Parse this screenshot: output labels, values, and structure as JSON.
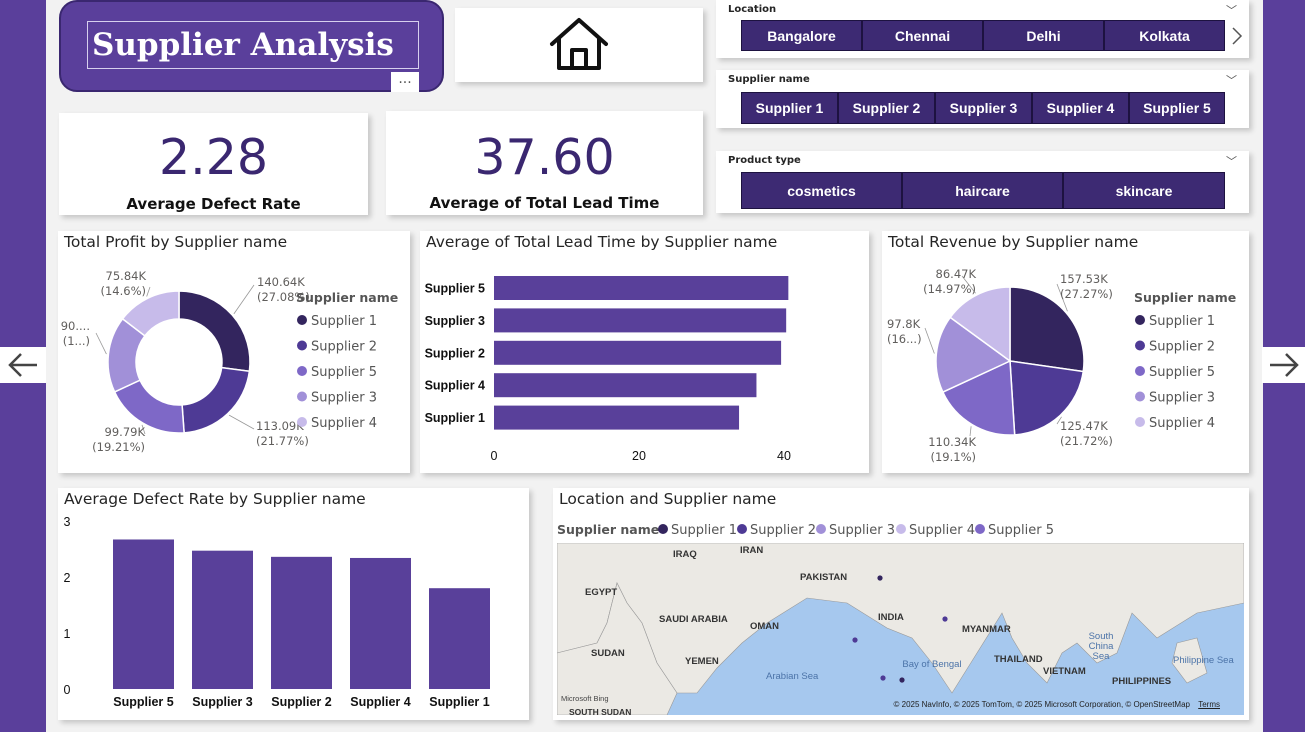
{
  "header": {
    "title": "Supplier Analysis",
    "more_label": "..."
  },
  "home_icon": "home-icon",
  "kpis": {
    "defect_rate": {
      "value": "2.28",
      "label": "Average Defect Rate"
    },
    "lead_time": {
      "value": "37.60",
      "label": "Average of Total Lead Time"
    }
  },
  "slicers": {
    "location": {
      "title": "Location",
      "options": [
        "Bangalore",
        "Chennai",
        "Delhi",
        "Kolkata"
      ]
    },
    "supplier": {
      "title": "Supplier name",
      "options": [
        "Supplier 1",
        "Supplier 2",
        "Supplier 3",
        "Supplier 4",
        "Supplier 5"
      ]
    },
    "product": {
      "title": "Product type",
      "options": [
        "cosmetics",
        "haircare",
        "skincare"
      ]
    }
  },
  "colors": {
    "supplier_1": "#33255e",
    "supplier_2": "#4e3a95",
    "supplier_5": "#7e68c7",
    "supplier_3": "#a190d8",
    "supplier_4": "#c7bbea",
    "bar": "#59409a",
    "background": "#5a3f9b"
  },
  "chart_data": [
    {
      "id": "profit",
      "type": "pie",
      "donut": true,
      "title": "Total Profit by Supplier name",
      "legend_title": "Supplier name",
      "legend": [
        "Supplier 1",
        "Supplier 2",
        "Supplier 5",
        "Supplier 3",
        "Supplier 4"
      ],
      "slices": [
        {
          "name": "Supplier 1",
          "value": 140.64,
          "label": "140.64K",
          "pct": "(27.08%)"
        },
        {
          "name": "Supplier 2",
          "value": 113.09,
          "label": "113.09K",
          "pct": "(21.77%)"
        },
        {
          "name": "Supplier 5",
          "value": 99.79,
          "label": "99.79K",
          "pct": "(19.21%)"
        },
        {
          "name": "Supplier 3",
          "value": 90.0,
          "label": "90....",
          "pct": "(1...)"
        },
        {
          "name": "Supplier 4",
          "value": 75.84,
          "label": "75.84K",
          "pct": "(14.6%)"
        }
      ]
    },
    {
      "id": "leadtime",
      "type": "bar",
      "orientation": "horizontal",
      "title": "Average of Total Lead Time by Supplier name",
      "categories": [
        "Supplier 5",
        "Supplier 3",
        "Supplier 2",
        "Supplier 4",
        "Supplier 1"
      ],
      "values": [
        40.6,
        40.3,
        39.6,
        36.2,
        33.8
      ],
      "xlim": [
        0,
        40
      ],
      "ticks": [
        "0",
        "20",
        "40"
      ],
      "tick_values": [
        0,
        20,
        40
      ]
    },
    {
      "id": "revenue",
      "type": "pie",
      "donut": false,
      "title": "Total Revenue by Supplier name",
      "legend_title": "Supplier name",
      "legend": [
        "Supplier 1",
        "Supplier 2",
        "Supplier 5",
        "Supplier 3",
        "Supplier 4"
      ],
      "slices": [
        {
          "name": "Supplier 1",
          "value": 157.53,
          "label": "157.53K",
          "pct": "(27.27%)"
        },
        {
          "name": "Supplier 2",
          "value": 125.47,
          "label": "125.47K",
          "pct": "(21.72%)"
        },
        {
          "name": "Supplier 5",
          "value": 110.34,
          "label": "110.34K",
          "pct": "(19.1%)"
        },
        {
          "name": "Supplier 3",
          "value": 97.8,
          "label": "97.8K",
          "pct": "(16...)"
        },
        {
          "name": "Supplier 4",
          "value": 86.47,
          "label": "86.47K",
          "pct": "(14.97%)"
        }
      ]
    },
    {
      "id": "defect",
      "type": "bar",
      "orientation": "vertical",
      "title": "Average Defect Rate by Supplier name",
      "categories": [
        "Supplier 5",
        "Supplier 3",
        "Supplier 2",
        "Supplier 4",
        "Supplier 1"
      ],
      "values": [
        2.67,
        2.47,
        2.36,
        2.34,
        1.8
      ],
      "ylim": [
        0,
        3
      ],
      "ticks": [
        "3",
        "2",
        "1",
        "0"
      ],
      "tick_values": [
        3,
        2,
        1,
        0
      ]
    }
  ],
  "map_panel": {
    "title": "Location and Supplier name",
    "legend_title": "Supplier name",
    "legend": [
      "Supplier 1",
      "Supplier 2",
      "Supplier 3",
      "Supplier 4",
      "Supplier 5"
    ],
    "countries": [
      "IRAQ",
      "IRAN",
      "PAKISTAN",
      "EGYPT",
      "SAUDI ARABIA",
      "OMAN",
      "INDIA",
      "MYANMAR",
      "SUDAN",
      "YEMEN",
      "THAILAND",
      "VIETNAM",
      "PHILIPPINES",
      "SOUTH SUDAN"
    ],
    "seas": [
      "Arabian Sea",
      "Bay of Bengal",
      "South China Sea",
      "Philippine Sea"
    ],
    "attribution": "© 2025 NavInfo, © 2025 TomTom, © 2025 Microsoft Corporation, © OpenStreetMap",
    "terms": "Terms",
    "bing": "Microsoft Bing"
  }
}
